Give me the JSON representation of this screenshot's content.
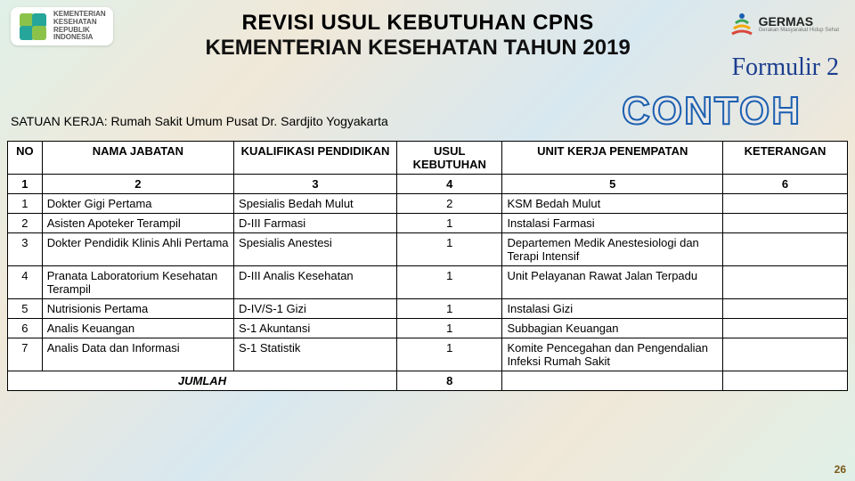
{
  "header": {
    "ministry_lines": [
      "KEMENTERIAN",
      "KESEHATAN",
      "REPUBLIK",
      "INDONESIA"
    ],
    "title_line1_a": "REVISI",
    "title_line1_b": " USUL KEBUTUHAN ",
    "title_line1_c": "CPNS",
    "title_line2": "KEMENTERIAN KESEHATAN TAHUN 2019",
    "germas_label": "GERMAS",
    "germas_sub": "Gerakan Masyarakat Hidup Sehat",
    "formulir": "Formulir 2",
    "watermark": "CONTOH"
  },
  "satuan_kerja_label": "SATUAN KERJA:",
  "satuan_kerja_value": "Rumah Sakit Umum Pusat Dr. Sardjito Yogyakarta",
  "table": {
    "columns": [
      "NO",
      "NAMA JABATAN",
      "KUALIFIKASI PENDIDIKAN",
      "USUL KEBUTUHAN",
      "UNIT KERJA PENEMPATAN",
      "KETERANGAN"
    ],
    "column_numbers": [
      "1",
      "2",
      "3",
      "4",
      "5",
      "6"
    ],
    "rows": [
      {
        "no": "1",
        "nama": "Dokter Gigi Pertama",
        "kual": "Spesialis Bedah Mulut",
        "usul": "2",
        "unit": "KSM Bedah Mulut",
        "ket": ""
      },
      {
        "no": "2",
        "nama": "Asisten Apoteker Terampil",
        "kual": "D-III Farmasi",
        "usul": "1",
        "unit": "Instalasi Farmasi",
        "ket": ""
      },
      {
        "no": "3",
        "nama": "Dokter Pendidik Klinis Ahli Pertama",
        "kual": "Spesialis Anestesi",
        "usul": "1",
        "unit": "Departemen Medik Anestesiologi dan Terapi Intensif",
        "ket": ""
      },
      {
        "no": "4",
        "nama": "Pranata Laboratorium Kesehatan Terampil",
        "kual": "D-III Analis Kesehatan",
        "usul": "1",
        "unit": "Unit Pelayanan Rawat Jalan Terpadu",
        "ket": ""
      },
      {
        "no": "5",
        "nama": "Nutrisionis Pertama",
        "kual": "D-IV/S-1 Gizi",
        "usul": "1",
        "unit": "Instalasi Gizi",
        "ket": ""
      },
      {
        "no": "6",
        "nama": "Analis Keuangan",
        "kual": "S-1 Akuntansi",
        "usul": "1",
        "unit": "Subbagian Keuangan",
        "ket": ""
      },
      {
        "no": "7",
        "nama": "Analis Data dan Informasi",
        "kual": "S-1 Statistik",
        "usul": "1",
        "unit": "Komite Pencegahan dan Pengendalian Infeksi Rumah Sakit",
        "ket": ""
      }
    ],
    "footer_label": "JUMLAH",
    "footer_total": "8"
  },
  "page_number": "26",
  "colors": {
    "title": "#000000",
    "formulir": "#1b3d8f",
    "watermark_stroke": "#1b5fb0"
  }
}
